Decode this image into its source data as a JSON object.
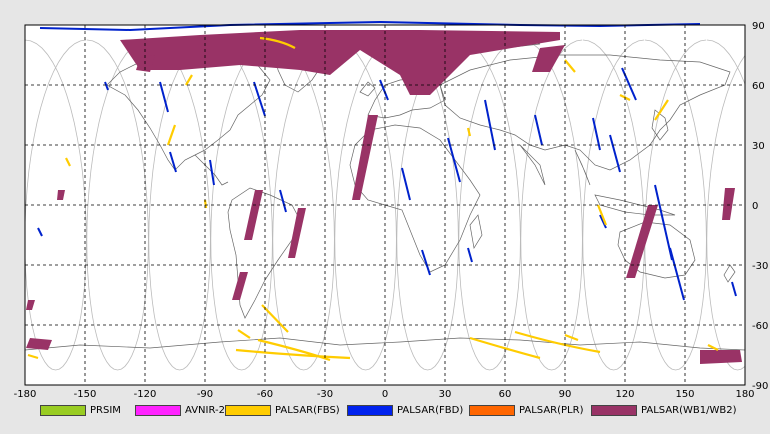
{
  "map": {
    "x_ticks": [
      "-180",
      "-150",
      "-120",
      "-90",
      "-60",
      "-30",
      "0",
      "30",
      "60",
      "90",
      "120",
      "150",
      "180"
    ],
    "y_ticks": [
      "90",
      "60",
      "30",
      "0",
      "-30",
      "-60",
      "-90"
    ]
  },
  "legend": [
    {
      "label": "PRSIM",
      "color": "#99cc22"
    },
    {
      "label": "AVNIR-2",
      "color": "#ff22ff"
    },
    {
      "label": "PALSAR(FBS)",
      "color": "#ffcc00"
    },
    {
      "label": "PALSAR(FBD)",
      "color": "#0022ee"
    },
    {
      "label": "PALSAR(PLR)",
      "color": "#ff6600"
    },
    {
      "label": "PALSAR(WB1/WB2)",
      "color": "#993366"
    }
  ],
  "colors": {
    "fbs": "#ffcc00",
    "fbd": "#0022cc",
    "wb": "#993366",
    "coast": "#666666",
    "orbit": "#bbbbbb",
    "grid": "#000000"
  }
}
